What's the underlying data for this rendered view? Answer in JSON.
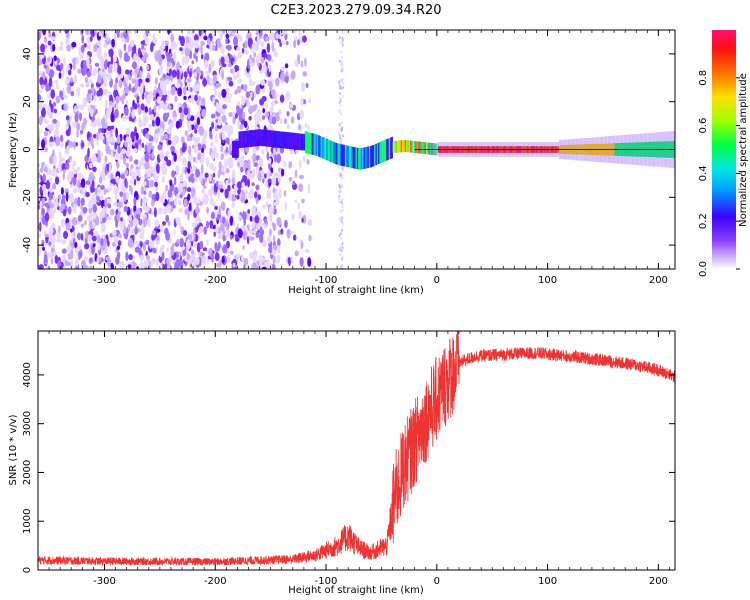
{
  "figure": {
    "title": "C2E3.2023.279.09.34.R20"
  },
  "chart_data": [
    {
      "type": "heatmap",
      "title": "",
      "xlabel": "Height of straight line (km)",
      "ylabel": "Frequency (Hz)",
      "xlim": [
        -360,
        215
      ],
      "ylim": [
        -50,
        50
      ],
      "x_ticks": [
        -300,
        -200,
        -100,
        0,
        100,
        200
      ],
      "y_ticks": [
        -40,
        -20,
        0,
        20,
        40
      ],
      "colorbar": {
        "label": "Normalized spectral amplitude",
        "range": [
          0,
          1
        ],
        "ticks": [
          0.0,
          0.2,
          0.4,
          0.6,
          0.8
        ]
      },
      "features": {
        "noise_region_x": [
          -360,
          -125
        ],
        "noise_threshold_x": -130,
        "signal_center_hz": [
          [
            -180,
            4
          ],
          [
            -160,
            5
          ],
          [
            -140,
            4
          ],
          [
            -120,
            3
          ],
          [
            -110,
            2
          ],
          [
            -100,
            0
          ],
          [
            -90,
            -2
          ],
          [
            -80,
            -3
          ],
          [
            -70,
            -4
          ],
          [
            -60,
            -3
          ],
          [
            -50,
            -1
          ],
          [
            -40,
            1
          ],
          [
            -30,
            1.5
          ],
          [
            -20,
            1
          ],
          [
            -10,
            0.5
          ],
          [
            0,
            0
          ],
          [
            100,
            0
          ],
          [
            215,
            0
          ]
        ]
      }
    },
    {
      "type": "line",
      "title": "",
      "xlabel": "Height of straight line (km)",
      "ylabel": "SNR (10 * v/v)",
      "xlim": [
        -360,
        215
      ],
      "ylim": [
        0,
        4900
      ],
      "x_ticks": [
        -300,
        -200,
        -100,
        0,
        100,
        200
      ],
      "y_ticks": [
        0,
        1000,
        2000,
        3000,
        4000
      ],
      "series": [
        {
          "color": "#ee3333",
          "envelope": [
            [
              -360,
              200
            ],
            [
              -300,
              180
            ],
            [
              -200,
              170
            ],
            [
              -130,
              220
            ],
            [
              -110,
              300
            ],
            [
              -90,
              500
            ],
            [
              -80,
              700
            ],
            [
              -70,
              450
            ],
            [
              -60,
              350
            ],
            [
              -45,
              500
            ],
            [
              -38,
              1500
            ],
            [
              -30,
              2100
            ],
            [
              -20,
              2600
            ],
            [
              -10,
              3100
            ],
            [
              0,
              3500
            ],
            [
              10,
              3900
            ],
            [
              20,
              4250
            ],
            [
              35,
              4380
            ],
            [
              60,
              4420
            ],
            [
              90,
              4450
            ],
            [
              120,
              4380
            ],
            [
              150,
              4300
            ],
            [
              180,
              4200
            ],
            [
              200,
              4100
            ],
            [
              215,
              3950
            ]
          ]
        }
      ]
    }
  ]
}
